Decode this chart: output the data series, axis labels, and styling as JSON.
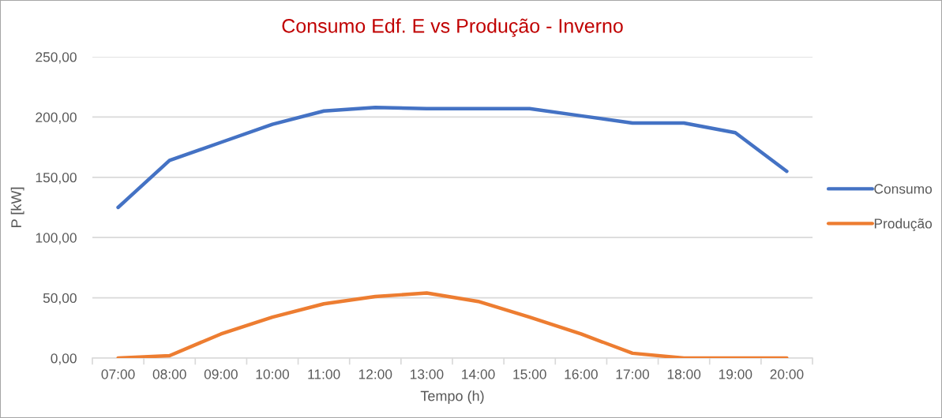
{
  "chart_data": {
    "type": "line",
    "title": "Consumo Edf. E vs Produção - Inverno",
    "xlabel": "Tempo (h)",
    "ylabel": "P [kW]",
    "categories": [
      "07:00",
      "08:00",
      "09:00",
      "10:00",
      "11:00",
      "12:00",
      "13:00",
      "14:00",
      "15:00",
      "16:00",
      "17:00",
      "18:00",
      "19:00",
      "20:00"
    ],
    "series": [
      {
        "name": "Consumo",
        "color": "#4472c4",
        "values": [
          125,
          164,
          179,
          194,
          205,
          208,
          207,
          207,
          207,
          201,
          195,
          195,
          187,
          155
        ]
      },
      {
        "name": "Produção",
        "color": "#ed7d31",
        "values": [
          0,
          2,
          20,
          34,
          45,
          51,
          54,
          47,
          34,
          20,
          4,
          0,
          0,
          0
        ]
      }
    ],
    "ylim": [
      0,
      250
    ],
    "yticks": [
      {
        "value": 0,
        "label": "0,00"
      },
      {
        "value": 50,
        "label": "50,00"
      },
      {
        "value": 100,
        "label": "100,00"
      },
      {
        "value": 150,
        "label": "150,00"
      },
      {
        "value": 200,
        "label": "200,00"
      },
      {
        "value": 250,
        "label": "250,00"
      }
    ],
    "grid": "y",
    "legend": "right"
  }
}
